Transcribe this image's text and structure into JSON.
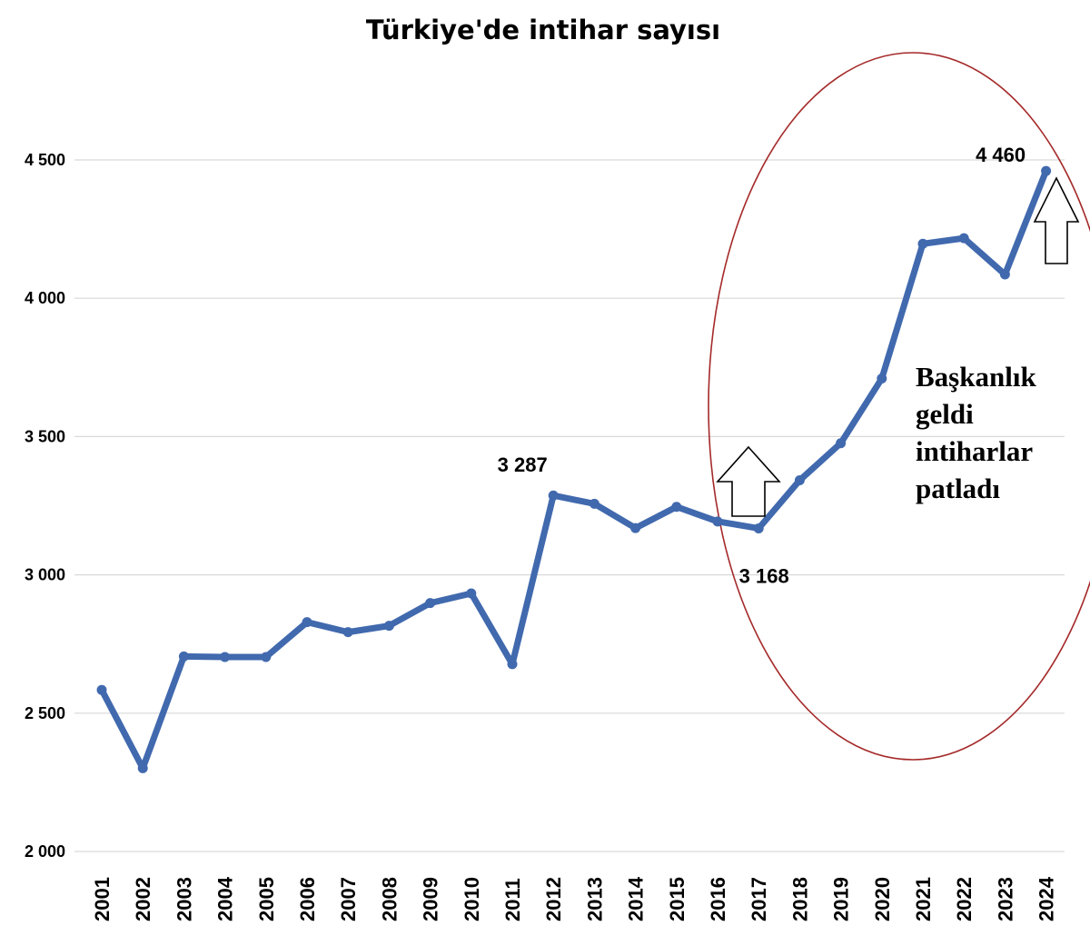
{
  "chart_data": {
    "type": "line",
    "title": "Türkiye'de intihar sayısı",
    "categories": [
      "2001",
      "2002",
      "2003",
      "2004",
      "2005",
      "2006",
      "2007",
      "2008",
      "2009",
      "2010",
      "2011",
      "2012",
      "2013",
      "2014",
      "2015",
      "2016",
      "2017",
      "2018",
      "2019",
      "2020",
      "2021",
      "2022",
      "2023",
      "2024"
    ],
    "values": [
      2584,
      2301,
      2705,
      2703,
      2703,
      2829,
      2793,
      2816,
      2898,
      2933,
      2677,
      3287,
      3257,
      3169,
      3246,
      3193,
      3168,
      3342,
      3476,
      3710,
      4197,
      4217,
      4086,
      4460
    ],
    "ylim": [
      2000,
      4500
    ],
    "yticks": [
      2000,
      2500,
      3000,
      3500,
      4000,
      4500
    ],
    "ytick_labels": [
      "2 000",
      "2 500",
      "3 000",
      "3 500",
      "4 000",
      "4 500"
    ],
    "grid": true,
    "data_labels": [
      {
        "index": 11,
        "text": "3 287"
      },
      {
        "index": 16,
        "text": "3 168"
      },
      {
        "index": 23,
        "text": "4 460"
      }
    ],
    "annotation": {
      "lines": [
        "Başkanlık",
        "geldi",
        "intiharlar",
        "patladı"
      ]
    },
    "colors": {
      "line": "#4169AE",
      "ellipse": "#A52A2A"
    }
  }
}
